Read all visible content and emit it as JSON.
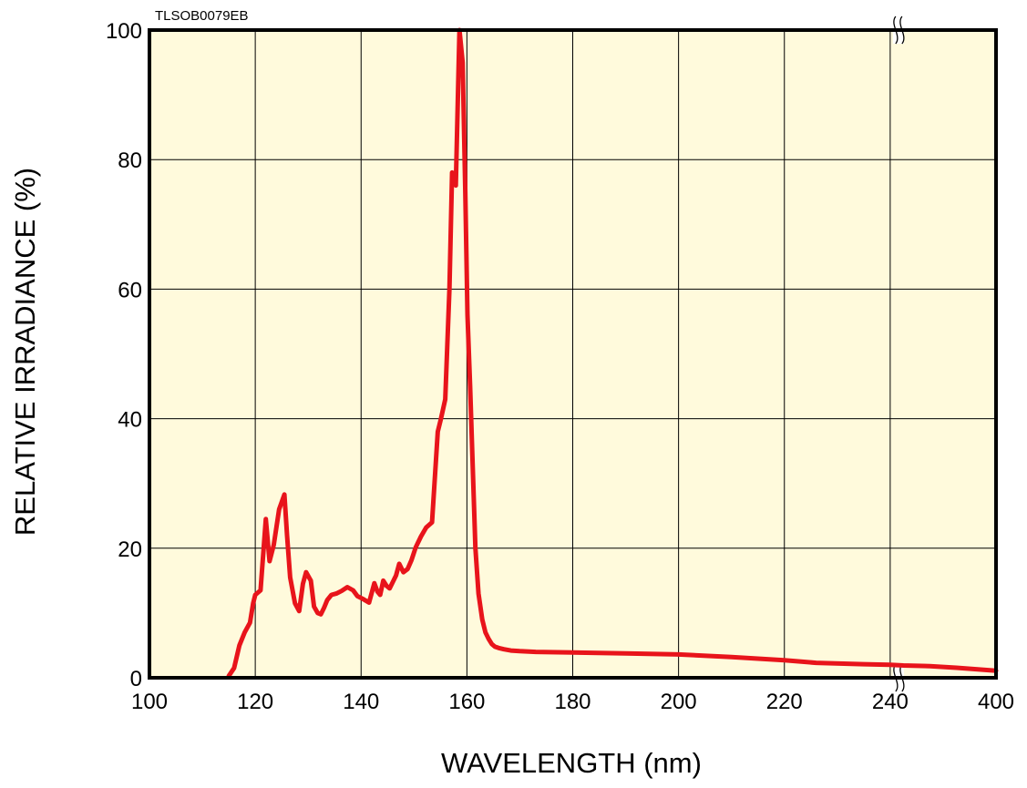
{
  "chart_data": {
    "type": "line",
    "code": "TLSOB0079EB",
    "xlabel": "WAVELENGTH (nm)",
    "ylabel": "RELATIVE IRRADIANCE (%)",
    "xlim": [
      100,
      400
    ],
    "ylim": [
      0,
      100
    ],
    "x_axis_break_at": 240,
    "x_ticks": [
      "100",
      "120",
      "140",
      "160",
      "180",
      "200",
      "220",
      "240",
      "400"
    ],
    "y_ticks": [
      "0",
      "20",
      "40",
      "60",
      "80",
      "100"
    ],
    "grid": true,
    "background": "#fffadc",
    "line_color": "#e8141b",
    "series": [
      {
        "x": [
          115,
          116,
          117,
          118,
          119,
          119.6,
          120,
          121,
          121.5,
          122,
          122.7,
          123.5,
          124.5,
          125.5,
          126,
          126.6,
          127.5,
          128.3,
          129,
          129.6,
          130.5,
          131.1,
          131.8,
          132.4,
          133,
          133.6,
          134.4,
          135.3,
          136.3,
          137.4,
          138.5,
          139.3,
          140.3,
          141.5,
          142.5,
          143.1,
          143.6,
          144.2,
          144.8,
          145.4,
          146,
          146.6,
          147.2,
          148,
          148.8,
          149.5,
          150.3,
          151.3,
          152.3,
          153.4,
          154.5,
          155.1,
          155.9,
          156.7,
          157.2,
          157.9,
          158.6,
          159.2,
          159.7,
          160.1,
          160.6,
          161,
          161.6,
          162.2,
          162.9,
          163.5,
          164.1,
          164.7,
          165.3,
          166,
          167,
          168.3,
          170,
          173,
          180,
          190,
          200,
          210,
          220,
          226,
          235,
          240,
          260,
          300,
          340,
          400
        ],
        "y": [
          0.3,
          1.5,
          5,
          7,
          8.5,
          11.5,
          12.8,
          13.5,
          19,
          24.5,
          18,
          20.5,
          26,
          28.3,
          22,
          15.5,
          11.5,
          10.3,
          14.5,
          16.3,
          15,
          11,
          10,
          9.8,
          10.8,
          12,
          12.8,
          13,
          13.4,
          14,
          13.5,
          12.6,
          12.2,
          11.6,
          14.6,
          13.3,
          12.8,
          15,
          14.2,
          13.8,
          14.8,
          15.8,
          17.6,
          16.3,
          16.8,
          18.1,
          20.1,
          21.8,
          23.2,
          24,
          38,
          40,
          43,
          60,
          78,
          76,
          100,
          95,
          75,
          56,
          45,
          35,
          20,
          13,
          9,
          7,
          6,
          5.2,
          4.8,
          4.6,
          4.4,
          4.2,
          4.1,
          4.0,
          3.9,
          3.75,
          3.6,
          3.2,
          2.7,
          2.3,
          2.1,
          2.0,
          1.9,
          1.8,
          1.55,
          1.1
        ]
      }
    ]
  }
}
